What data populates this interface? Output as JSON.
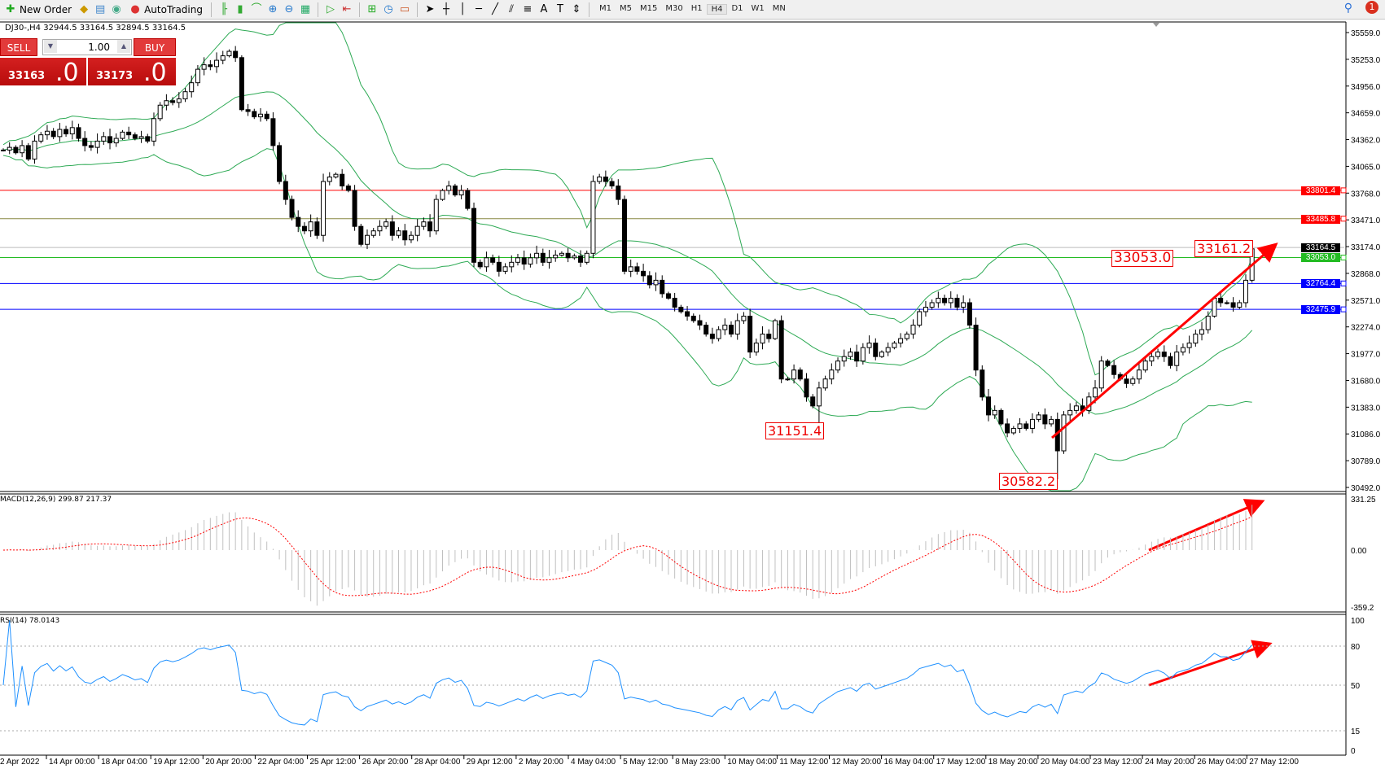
{
  "toolbar": {
    "new_order": "New Order",
    "autotrading": "AutoTrading",
    "timeframes": [
      "M1",
      "M5",
      "M15",
      "M30",
      "H1",
      "H4",
      "D1",
      "W1",
      "MN"
    ],
    "active_timeframe": "H4",
    "notifications": "1"
  },
  "symbol_header": "DJ30-,H4  32944.5 33164.5 32894.5 33164.5",
  "trade_panel": {
    "sell": "SELL",
    "buy": "BUY",
    "lot": "1.00",
    "sell_price_main": "33163",
    "sell_price_big": ".0",
    "buy_price_main": "33173",
    "buy_price_big": ".0"
  },
  "price_axis": [
    "35559.0",
    "35253.0",
    "34956.0",
    "34659.0",
    "34362.0",
    "34065.0",
    "33768.0",
    "33471.0",
    "33174.0",
    "32868.0",
    "32571.0",
    "32274.0",
    "31977.0",
    "31680.0",
    "31383.0",
    "31086.0",
    "30789.0",
    "30492.0"
  ],
  "price_levels": [
    {
      "value": 33801.4,
      "label": "33801.4",
      "color": "#ff0000"
    },
    {
      "value": 33485.8,
      "label": "33485.8",
      "color": "#ff0000"
    },
    {
      "value": 33164.5,
      "label": "33164.5",
      "color": "#000000"
    },
    {
      "value": 33053.0,
      "label": "33053.0",
      "color": "#22bb22"
    },
    {
      "value": 32764.4,
      "label": "32764.4",
      "color": "#0000ff"
    },
    {
      "value": 32475.9,
      "label": "32475.9",
      "color": "#0000ff"
    }
  ],
  "annotations": [
    "33053.0",
    "33161.2",
    "31151.4",
    "30582.2"
  ],
  "macd": {
    "header": "MACD(12,26,9) 299.87 217.37",
    "axis": [
      "331.25",
      "0.00",
      "-359.2"
    ]
  },
  "rsi": {
    "header": "RSI(14) 78.0143",
    "axis": [
      "100",
      "80",
      "50",
      "15",
      "0"
    ]
  },
  "dates": [
    "2 Apr 2022",
    "14 Apr 00:00",
    "18 Apr 04:00",
    "19 Apr 12:00",
    "20 Apr 20:00",
    "22 Apr 04:00",
    "25 Apr 12:00",
    "26 Apr 20:00",
    "28 Apr 04:00",
    "29 Apr 12:00",
    "2 May 20:00",
    "4 May 04:00",
    "5 May 12:00",
    "8 May 23:00",
    "10 May 04:00",
    "11 May 12:00",
    "12 May 20:00",
    "16 May 04:00",
    "17 May 12:00",
    "18 May 20:00",
    "20 May 04:00",
    "23 May 12:00",
    "24 May 20:00",
    "26 May 04:00",
    "27 May 12:00"
  ],
  "colors": {
    "bands": "#2eaa55",
    "macd_signal": "#ff0000",
    "macd_hist": "#c0c0c0",
    "rsi": "#1e90ff",
    "arrows": "#ff0000"
  },
  "chart_data": {
    "type": "candlestick",
    "ylim": [
      30492,
      35559
    ],
    "closes": [
      34250,
      34280,
      34220,
      34300,
      34150,
      34350,
      34420,
      34460,
      34400,
      34480,
      34430,
      34500,
      34380,
      34300,
      34280,
      34350,
      34400,
      34330,
      34380,
      34450,
      34420,
      34380,
      34400,
      34350,
      34600,
      34750,
      34800,
      34780,
      34820,
      34900,
      35000,
      35150,
      35200,
      35180,
      35250,
      35300,
      35350,
      35280,
      34700,
      34680,
      34620,
      34650,
      34600,
      34300,
      33900,
      33700,
      33500,
      33400,
      33350,
      33450,
      33300,
      33900,
      33950,
      33980,
      33850,
      33800,
      33400,
      33200,
      33300,
      33350,
      33400,
      33450,
      33300,
      33350,
      33250,
      33300,
      33400,
      33450,
      33350,
      33700,
      33800,
      33850,
      33750,
      33800,
      33600,
      33000,
      32950,
      33050,
      33000,
      32900,
      32950,
      33000,
      33050,
      32980,
      33050,
      33100,
      33000,
      33050,
      33080,
      33100,
      33050,
      33070,
      33000,
      33100,
      33900,
      33950,
      33900,
      33850,
      33700,
      32900,
      32950,
      32900,
      32850,
      32750,
      32800,
      32650,
      32600,
      32500,
      32450,
      32400,
      32350,
      32300,
      32200,
      32150,
      32250,
      32300,
      32200,
      32350,
      32400,
      32000,
      32100,
      32200,
      32150,
      32350,
      31700,
      31700,
      31800,
      31700,
      31500,
      31400,
      31600,
      31700,
      31800,
      31900,
      31950,
      32000,
      31900,
      32050,
      32100,
      31950,
      32000,
      32050,
      32100,
      32150,
      32200,
      32300,
      32450,
      32500,
      32550,
      32600,
      32550,
      32600,
      32500,
      32550,
      32300,
      31800,
      31500,
      31300,
      31350,
      31200,
      31100,
      31150,
      31200,
      31150,
      31250,
      31300,
      31200,
      31250,
      30900,
      31300,
      31350,
      31400,
      31350,
      31500,
      31600,
      31900,
      31850,
      31750,
      31700,
      31650,
      31700,
      31800,
      31900,
      31950,
      32000,
      31950,
      31850,
      32000,
      32050,
      32100,
      32200,
      32250,
      32400,
      32600,
      32550,
      32550,
      32500,
      32550,
      32800,
      33150
    ],
    "annotated_lows": [
      {
        "index": 130,
        "value": 31151.4
      },
      {
        "index": 168,
        "value": 30582.2
      }
    ]
  }
}
